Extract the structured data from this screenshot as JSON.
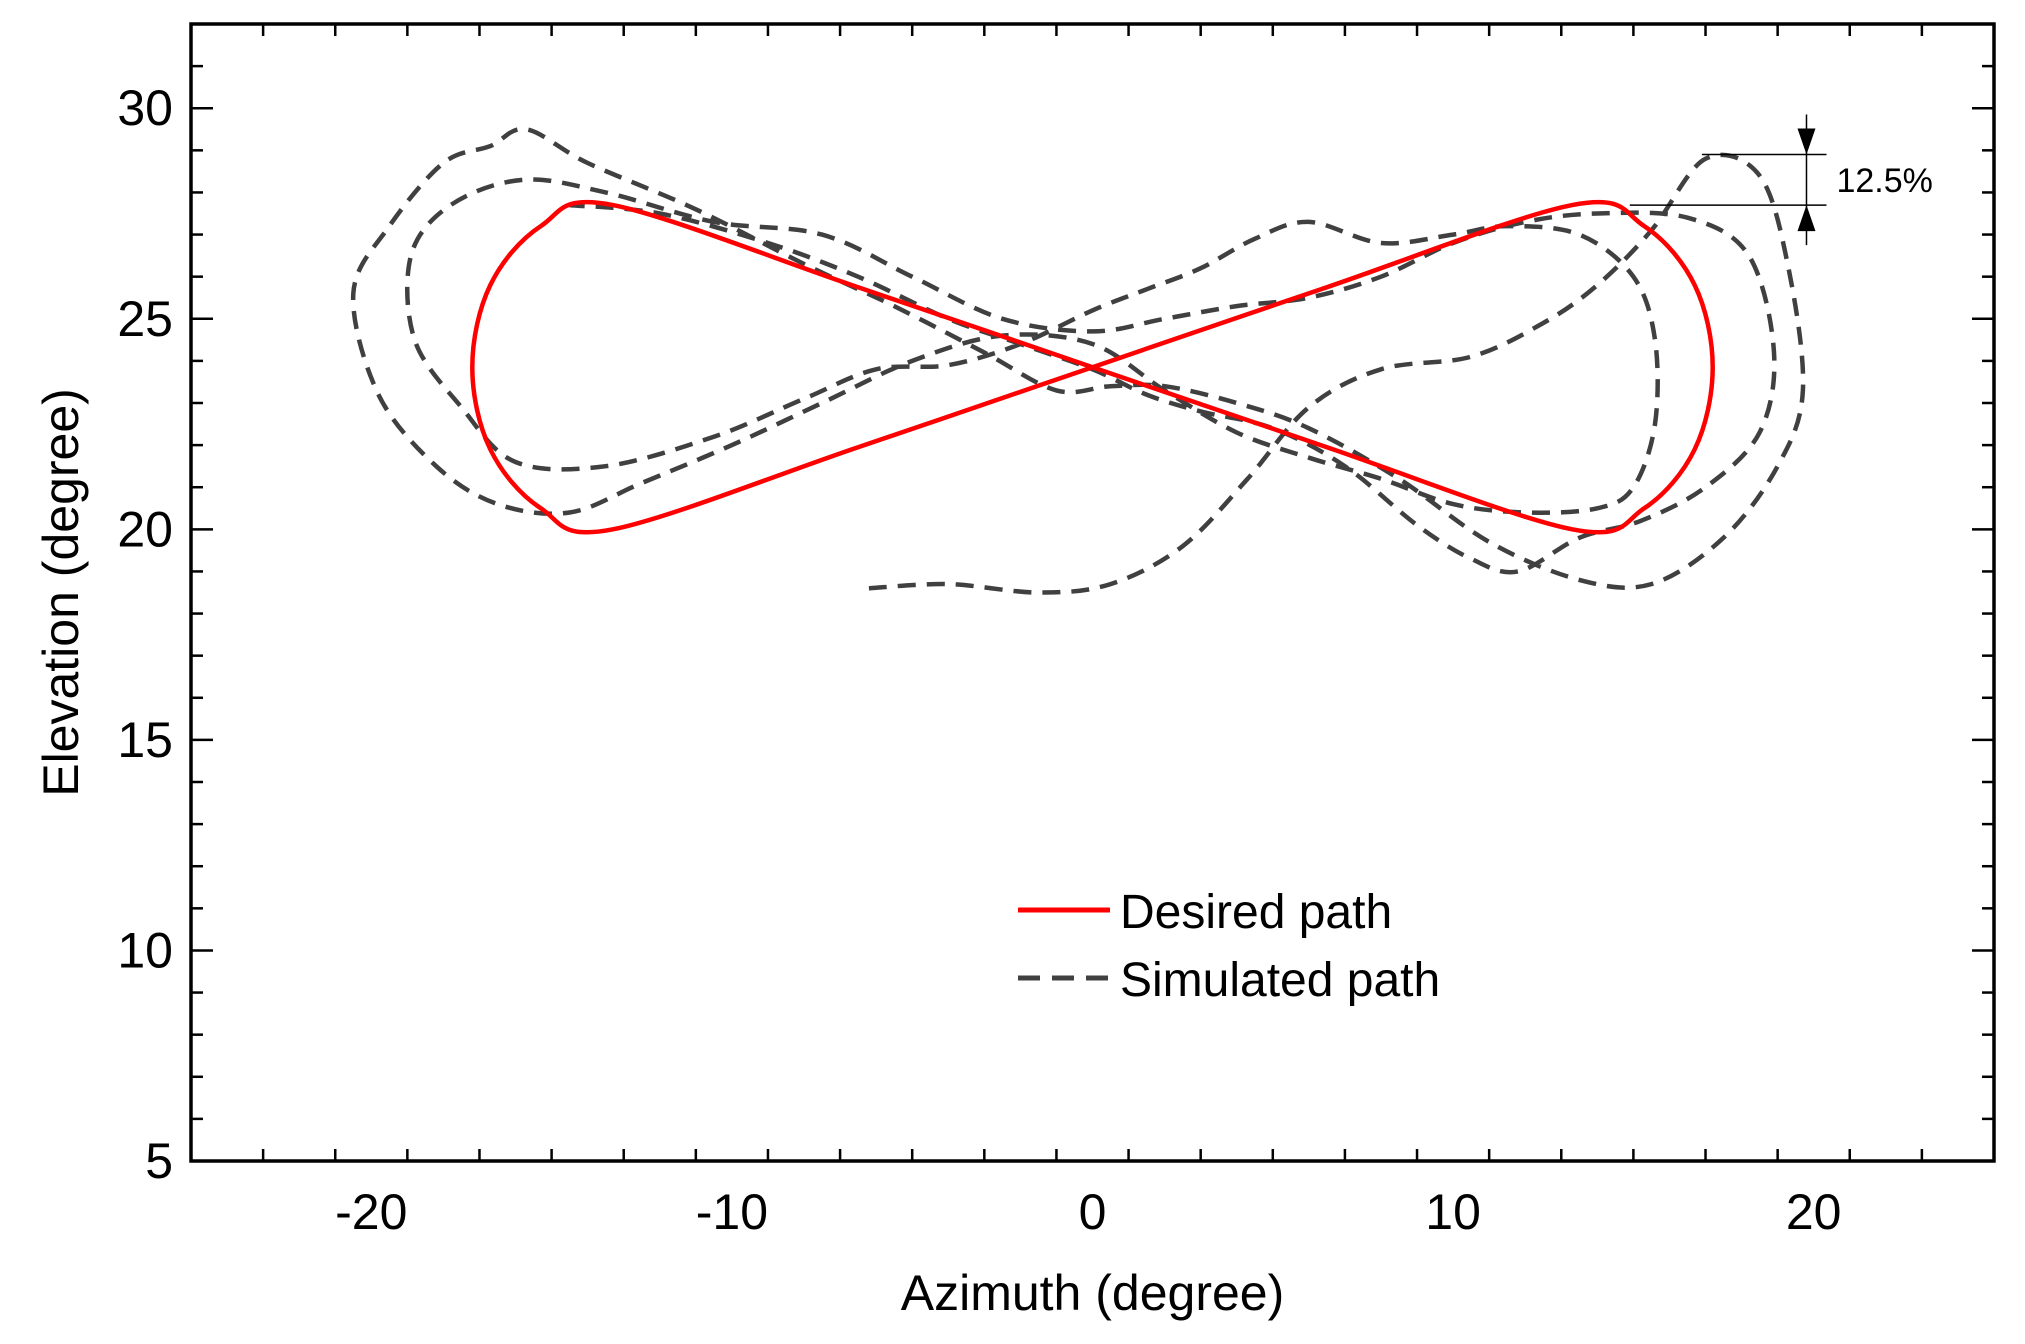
{
  "chart_data": {
    "type": "line",
    "title": "",
    "xlabel": "Azimuth (degree)",
    "ylabel": "Elevation (degree)",
    "xlim": [
      -25,
      25
    ],
    "ylim": [
      5,
      32
    ],
    "xticks": [
      -20,
      -10,
      0,
      10,
      20
    ],
    "xtick_labels": [
      "-20",
      "-10",
      "0",
      "10",
      "20"
    ],
    "yticks": [
      5,
      10,
      15,
      20,
      25,
      30
    ],
    "ytick_labels": [
      "5",
      "10",
      "15",
      "20",
      "25",
      "30"
    ],
    "x_minor_step": 2,
    "y_minor_step": 1,
    "grid": false,
    "legend_position": "center",
    "annotation": {
      "text": "12.5%",
      "x": 19.8,
      "y_top": 28.9,
      "y_bottom": 27.7
    },
    "series": [
      {
        "name": "Desired path",
        "color": "#ff0000",
        "style": "solid",
        "points": [
          [
            0,
            23.85
          ],
          [
            6.5,
            25.75
          ],
          [
            13.3,
            27.7
          ],
          [
            15.3,
            27.2
          ],
          [
            16.7,
            25.8
          ],
          [
            17.2,
            23.85
          ],
          [
            16.7,
            21.9
          ],
          [
            15.3,
            20.5
          ],
          [
            13.3,
            20.0
          ],
          [
            6.5,
            21.95
          ],
          [
            0,
            23.85
          ],
          [
            -6.5,
            25.75
          ],
          [
            -13.3,
            27.7
          ],
          [
            -15.3,
            27.2
          ],
          [
            -16.7,
            25.8
          ],
          [
            -17.2,
            23.85
          ],
          [
            -16.7,
            21.9
          ],
          [
            -15.3,
            20.5
          ],
          [
            -13.3,
            20.0
          ],
          [
            -6.5,
            21.95
          ],
          [
            0,
            23.85
          ]
        ]
      },
      {
        "name": "Simulated path",
        "color": "#404040",
        "style": "dashed",
        "points": [
          [
            -6.2,
            18.6
          ],
          [
            -4.0,
            18.7
          ],
          [
            -1.5,
            18.5
          ],
          [
            0.5,
            18.7
          ],
          [
            2.5,
            19.6
          ],
          [
            4.3,
            21.2
          ],
          [
            6.0,
            22.9
          ],
          [
            8.0,
            23.8
          ],
          [
            10.5,
            24.1
          ],
          [
            12.5,
            24.9
          ],
          [
            14.0,
            25.8
          ],
          [
            15.5,
            27.1
          ],
          [
            17.0,
            28.8
          ],
          [
            18.5,
            28.4
          ],
          [
            19.3,
            26.2
          ],
          [
            19.7,
            23.3
          ],
          [
            19.0,
            21.5
          ],
          [
            17.5,
            19.8
          ],
          [
            15.5,
            18.7
          ],
          [
            13.5,
            18.8
          ],
          [
            11.0,
            19.7
          ],
          [
            8.5,
            21.2
          ],
          [
            6.0,
            22.4
          ],
          [
            4.0,
            23.0
          ],
          [
            2.0,
            23.4
          ],
          [
            0.5,
            23.4
          ],
          [
            -1.0,
            23.3
          ],
          [
            -3.0,
            24.2
          ],
          [
            -5.5,
            25.3
          ],
          [
            -8.0,
            26.3
          ],
          [
            -11.0,
            27.6
          ],
          [
            -14.0,
            28.7
          ],
          [
            -15.7,
            29.5
          ],
          [
            -16.7,
            29.1
          ],
          [
            -18.0,
            28.7
          ],
          [
            -19.5,
            27.2
          ],
          [
            -20.5,
            25.6
          ],
          [
            -19.8,
            23.2
          ],
          [
            -18.2,
            21.5
          ],
          [
            -16.5,
            20.6
          ],
          [
            -14.5,
            20.4
          ],
          [
            -12.5,
            21.1
          ],
          [
            -10.0,
            22.0
          ],
          [
            -7.5,
            23.0
          ],
          [
            -5.0,
            24.0
          ],
          [
            -2.5,
            24.6
          ],
          [
            0.0,
            24.4
          ],
          [
            2.0,
            23.3
          ],
          [
            4.0,
            22.3
          ],
          [
            6.0,
            21.7
          ],
          [
            8.0,
            21.2
          ],
          [
            10.0,
            20.6
          ],
          [
            12.0,
            20.4
          ],
          [
            14.0,
            20.5
          ],
          [
            15.0,
            21.0
          ],
          [
            15.6,
            22.5
          ],
          [
            15.6,
            24.5
          ],
          [
            15.0,
            26.0
          ],
          [
            13.5,
            27.0
          ],
          [
            11.5,
            27.2
          ],
          [
            10.0,
            27.0
          ],
          [
            8.0,
            26.8
          ],
          [
            6.0,
            27.3
          ],
          [
            4.5,
            26.9
          ],
          [
            3.0,
            26.2
          ],
          [
            1.5,
            25.7
          ],
          [
            0.0,
            25.2
          ],
          [
            -2.0,
            24.4
          ],
          [
            -4.0,
            23.9
          ],
          [
            -6.0,
            23.8
          ],
          [
            -8.0,
            23.1
          ],
          [
            -10.5,
            22.2
          ],
          [
            -13.5,
            21.5
          ],
          [
            -16.0,
            21.6
          ],
          [
            -17.5,
            22.9
          ],
          [
            -18.8,
            24.5
          ],
          [
            -18.9,
            26.5
          ],
          [
            -17.8,
            27.7
          ],
          [
            -15.8,
            28.3
          ],
          [
            -13.5,
            28.0
          ],
          [
            -10.5,
            27.3
          ],
          [
            -7.5,
            27.0
          ],
          [
            -5.0,
            26.0
          ],
          [
            -2.5,
            25.0
          ],
          [
            0.0,
            24.7
          ],
          [
            2.0,
            25.0
          ],
          [
            4.0,
            25.3
          ],
          [
            6.0,
            25.5
          ],
          [
            8.0,
            26.0
          ],
          [
            10.0,
            26.8
          ],
          [
            12.0,
            27.3
          ],
          [
            14.0,
            27.5
          ],
          [
            16.5,
            27.4
          ],
          [
            18.2,
            26.5
          ],
          [
            18.9,
            24.2
          ],
          [
            18.5,
            22.3
          ],
          [
            17.0,
            21.0
          ],
          [
            15.2,
            20.2
          ],
          [
            13.5,
            19.8
          ],
          [
            11.8,
            19.0
          ],
          [
            10.5,
            19.3
          ],
          [
            9.0,
            20.1
          ],
          [
            7.0,
            21.5
          ],
          [
            5.0,
            22.4
          ],
          [
            3.0,
            22.8
          ],
          [
            1.5,
            23.2
          ],
          [
            0.0,
            23.8
          ],
          [
            -2.0,
            24.4
          ],
          [
            -4.0,
            25.0
          ],
          [
            -6.5,
            26.0
          ],
          [
            -9.0,
            26.8
          ],
          [
            -12.0,
            27.5
          ],
          [
            -14.5,
            27.7
          ]
        ]
      }
    ]
  }
}
